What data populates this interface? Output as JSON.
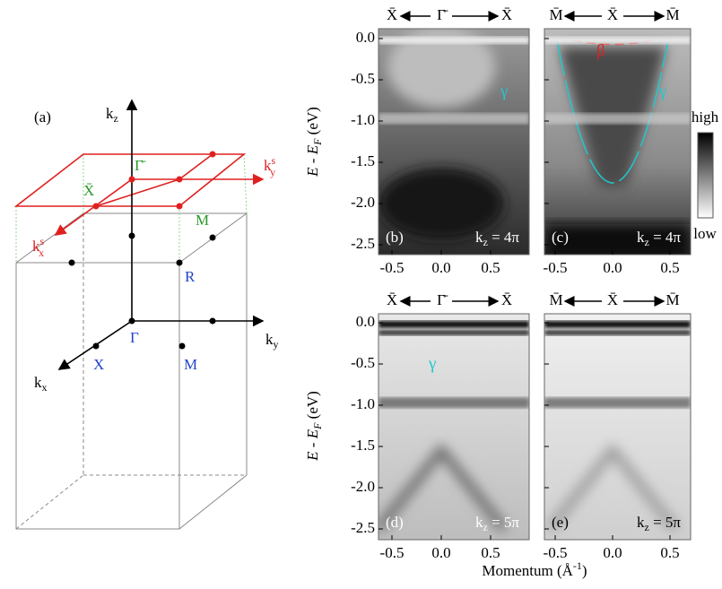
{
  "panel_a": {
    "label": "(a)",
    "k_z": {
      "base": "k",
      "sub": "z"
    },
    "k_y": {
      "base": "k",
      "sub": "y"
    },
    "k_x": {
      "base": "k",
      "sub": "x"
    },
    "k_y_s": {
      "base": "k",
      "sup": "s",
      "sub": "y"
    },
    "k_x_s": {
      "base": "k",
      "sup": "s",
      "sub": "x"
    },
    "gamma_bar": "Γ̄",
    "x_bar": "X̄",
    "m_bar": "M̄",
    "r": "R",
    "gamma": "Γ",
    "x": "X",
    "m": "M"
  },
  "arpes": {
    "y_label": {
      "base": "E - E",
      "sub": "F",
      "unit": " (eV)"
    },
    "x_label": {
      "main": "Momentum (Å",
      "sup": "-1",
      "end": ")"
    },
    "y_ticks": [
      "0.0",
      "-0.5",
      "-1.0",
      "-1.5",
      "-2.0",
      "-2.5"
    ],
    "x_ticks": [
      "-0.5",
      "0.0",
      "0.5"
    ],
    "panels": [
      {
        "label": "(b)",
        "kz": {
          "base": "k",
          "sub": "z",
          "rest": " = 4π"
        },
        "top": [
          "X̄",
          "Γ̄",
          "X̄"
        ],
        "annotations": [
          "γ"
        ]
      },
      {
        "label": "(c)",
        "kz": {
          "base": "k",
          "sub": "z",
          "rest": " = 4π"
        },
        "top": [
          "M̄",
          "X̄",
          "M̄"
        ],
        "annotations": [
          "β",
          "γ"
        ]
      },
      {
        "label": "(d)",
        "kz": {
          "base": "k",
          "sub": "z",
          "rest": " = 5π"
        },
        "top": [
          "X̄",
          "Γ̄",
          "X̄"
        ],
        "annotations": [
          "γ"
        ]
      },
      {
        "label": "(e)",
        "kz": {
          "base": "k",
          "sub": "z",
          "rest": " = 5π"
        },
        "top": [
          "M̄",
          "X̄",
          "M̄"
        ]
      }
    ],
    "colorbar": {
      "high": "high",
      "low": "low"
    }
  }
}
